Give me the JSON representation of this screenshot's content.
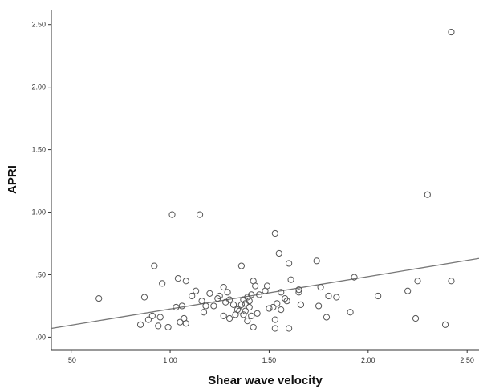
{
  "chart_data": {
    "type": "scatter",
    "title": "",
    "xlabel": "Shear wave velocity",
    "ylabel": "APRI",
    "xlim": [
      0.4,
      2.56
    ],
    "ylim": [
      -0.1,
      2.62
    ],
    "x_ticks": [
      0.5,
      1.0,
      1.5,
      2.0,
      2.5
    ],
    "x_tick_labels": [
      ".50",
      "1.00",
      "1.50",
      "2.00",
      "2.50"
    ],
    "y_ticks": [
      0.0,
      0.5,
      1.0,
      1.5,
      2.0,
      2.5
    ],
    "y_tick_labels": [
      ".00",
      ".50",
      "1.00",
      "1.50",
      "2.00",
      "2.50"
    ],
    "grid": false,
    "legend": "none",
    "colors": {
      "marker": "#555555",
      "line": "#777777",
      "axis": "#333333"
    },
    "fit_line": {
      "x": [
        0.4,
        2.56
      ],
      "y": [
        0.07,
        0.63
      ]
    },
    "series": [
      {
        "marker": "open-circle",
        "points": [
          [
            0.64,
            0.31
          ],
          [
            0.85,
            0.1
          ],
          [
            0.87,
            0.32
          ],
          [
            0.89,
            0.14
          ],
          [
            0.91,
            0.17
          ],
          [
            0.92,
            0.57
          ],
          [
            0.94,
            0.09
          ],
          [
            0.95,
            0.16
          ],
          [
            0.96,
            0.43
          ],
          [
            0.99,
            0.08
          ],
          [
            1.01,
            0.98
          ],
          [
            1.03,
            0.24
          ],
          [
            1.04,
            0.47
          ],
          [
            1.05,
            0.12
          ],
          [
            1.06,
            0.25
          ],
          [
            1.07,
            0.15
          ],
          [
            1.08,
            0.45
          ],
          [
            1.08,
            0.11
          ],
          [
            1.11,
            0.33
          ],
          [
            1.13,
            0.37
          ],
          [
            1.15,
            0.98
          ],
          [
            1.16,
            0.29
          ],
          [
            1.17,
            0.2
          ],
          [
            1.18,
            0.25
          ],
          [
            1.2,
            0.35
          ],
          [
            1.22,
            0.25
          ],
          [
            1.24,
            0.31
          ],
          [
            1.25,
            0.33
          ],
          [
            1.27,
            0.4
          ],
          [
            1.27,
            0.17
          ],
          [
            1.28,
            0.28
          ],
          [
            1.29,
            0.36
          ],
          [
            1.3,
            0.15
          ],
          [
            1.3,
            0.3
          ],
          [
            1.32,
            0.26
          ],
          [
            1.33,
            0.18
          ],
          [
            1.34,
            0.22
          ],
          [
            1.35,
            0.21
          ],
          [
            1.36,
            0.57
          ],
          [
            1.36,
            0.26
          ],
          [
            1.37,
            0.18
          ],
          [
            1.37,
            0.3
          ],
          [
            1.38,
            0.21
          ],
          [
            1.38,
            0.27
          ],
          [
            1.39,
            0.13
          ],
          [
            1.39,
            0.32
          ],
          [
            1.4,
            0.24
          ],
          [
            1.4,
            0.29
          ],
          [
            1.41,
            0.17
          ],
          [
            1.41,
            0.34
          ],
          [
            1.42,
            0.45
          ],
          [
            1.42,
            0.08
          ],
          [
            1.43,
            0.41
          ],
          [
            1.44,
            0.19
          ],
          [
            1.45,
            0.34
          ],
          [
            1.48,
            0.37
          ],
          [
            1.49,
            0.41
          ],
          [
            1.5,
            0.23
          ],
          [
            1.52,
            0.24
          ],
          [
            1.53,
            0.83
          ],
          [
            1.53,
            0.14
          ],
          [
            1.53,
            0.07
          ],
          [
            1.54,
            0.27
          ],
          [
            1.55,
            0.67
          ],
          [
            1.56,
            0.22
          ],
          [
            1.56,
            0.36
          ],
          [
            1.58,
            0.31
          ],
          [
            1.59,
            0.29
          ],
          [
            1.6,
            0.59
          ],
          [
            1.6,
            0.07
          ],
          [
            1.61,
            0.46
          ],
          [
            1.65,
            0.38
          ],
          [
            1.65,
            0.36
          ],
          [
            1.66,
            0.26
          ],
          [
            1.74,
            0.61
          ],
          [
            1.75,
            0.25
          ],
          [
            1.76,
            0.4
          ],
          [
            1.79,
            0.16
          ],
          [
            1.8,
            0.33
          ],
          [
            1.84,
            0.32
          ],
          [
            1.91,
            0.2
          ],
          [
            1.93,
            0.48
          ],
          [
            2.05,
            0.33
          ],
          [
            2.2,
            0.37
          ],
          [
            2.24,
            0.15
          ],
          [
            2.25,
            0.45
          ],
          [
            2.3,
            1.14
          ],
          [
            2.39,
            0.1
          ],
          [
            2.42,
            2.44
          ],
          [
            2.42,
            0.45
          ]
        ]
      }
    ]
  }
}
